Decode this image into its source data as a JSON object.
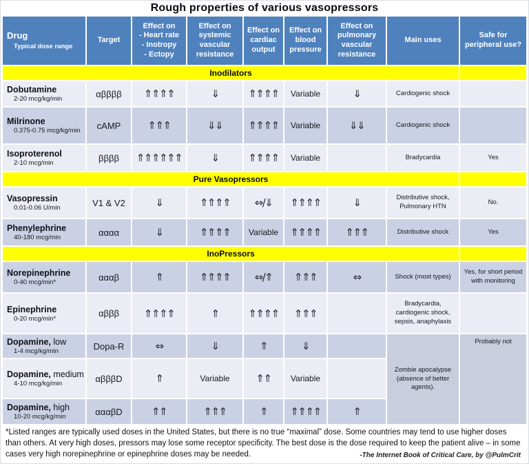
{
  "colors": {
    "header_blue": "#4f81bd",
    "section_yellow": "#ffff00",
    "row_light": "#ebedf5",
    "row_dark": "#cbd1e4",
    "merged_cell": "#c8cede",
    "header_text": "#ffffff"
  },
  "chart_data": {
    "type": "table",
    "title": "Rough properties of various vasopressors",
    "header": {
      "drug": "Drug",
      "drug_sub": "Typical dose range",
      "target": "Target",
      "hr1": "Effect on",
      "hr2": "- Heart rate",
      "hr3": "- Inotropy",
      "hr4": "- Ectopy",
      "svr1": "Effect on",
      "svr2": "systemic",
      "svr3": "vascular",
      "svr4": "resistance",
      "co1": "Effect on",
      "co2": "cardiac",
      "co3": "output",
      "bp1": "Effect on",
      "bp2": "blood",
      "bp3": "pressure",
      "pvr1": "Effect on",
      "pvr2": "pulmonary",
      "pvr3": "vascular",
      "pvr4": "resistance",
      "uses": "Main uses",
      "safe1": "Safe for",
      "safe2": "peripheral use?"
    },
    "section_labels": {
      "inodilators": "Inodilators",
      "pure": "Pure Vasopressors",
      "inopressors": "InoPressors"
    },
    "rows": [
      {
        "name": "Dobutamine",
        "suffix": "",
        "dose": "2-20 mcg/kg/min",
        "target": "αββββ",
        "hr": "⇑⇑⇑⇑",
        "svr": "⇓",
        "co": "⇑⇑⇑⇑",
        "bp": "Variable",
        "pvr": "⇓",
        "uses": "Cardiogenic shock",
        "safe": ""
      },
      {
        "name": "Milrinone",
        "suffix": "",
        "dose": "0.375-0.75 mcg/kg/min",
        "target": "cAMP",
        "hr": "⇑⇑⇑",
        "svr": "⇓⇓",
        "co": "⇑⇑⇑⇑",
        "bp": "Variable",
        "pvr": "⇓⇓",
        "uses": "Cardiogenic shock",
        "safe": ""
      },
      {
        "name": "Isoproterenol",
        "suffix": "",
        "dose": "2-10 mcg/min",
        "target": "ββββ",
        "hr": "⇑⇑⇑⇑⇑⇑",
        "svr": "⇓",
        "co": "⇑⇑⇑⇑",
        "bp": "Variable",
        "pvr": "",
        "uses": "Bradycardia",
        "safe": "Yes"
      },
      {
        "name": "Vasopressin",
        "suffix": "",
        "dose": "0.01-0.06 U/min",
        "target": "V1 & V2",
        "hr": "⇓",
        "svr": "⇑⇑⇑⇑",
        "co": "⇔/⇓",
        "bp": "⇑⇑⇑⇑",
        "pvr": "⇓",
        "uses": "Distributive shock, Pulmonary HTN",
        "safe": "No."
      },
      {
        "name": "Phenylephrine",
        "suffix": "",
        "dose": "40-180 mcg/min",
        "target": "αααα",
        "hr": "⇓",
        "svr": "⇑⇑⇑⇑",
        "co": "Variable",
        "bp": "⇑⇑⇑⇑",
        "pvr": "⇑⇑⇑",
        "uses": "Distributive shock",
        "safe": "Yes"
      },
      {
        "name": "Norepinephrine",
        "suffix": "",
        "dose": "0-40 mcg/min*",
        "target": "αααβ",
        "hr": "⇑",
        "svr": "⇑⇑⇑⇑",
        "co": "⇔/⇑",
        "bp": "⇑⇑⇑",
        "pvr": "⇔",
        "uses": "Shock (most types)",
        "safe": "Yes, for short period with monitoring"
      },
      {
        "name": "Epinephrine",
        "suffix": "",
        "dose": "0-20 mcg/min*",
        "target": "αβββ",
        "hr": "⇑⇑⇑⇑",
        "svr": "⇑",
        "co": "⇑⇑⇑⇑",
        "bp": "⇑⇑⇑",
        "pvr": "",
        "uses": "Bradycardia, cardiogenic shock, sepsis, anaphylaxis",
        "safe": ""
      },
      {
        "name": "Dopamine,",
        "suffix": " low",
        "dose": "1-4 mcg/kg/min",
        "target": "Dopa-R",
        "hr": "⇔",
        "svr": "⇓",
        "co": "⇑",
        "bp": "⇓",
        "pvr": "",
        "uses": "",
        "safe": ""
      },
      {
        "name": "Dopamine,",
        "suffix": " medium",
        "dose": "4-10 mcg/kg/min",
        "target": "αβββD",
        "hr": "⇑",
        "svr": "Variable",
        "co": "⇑⇑",
        "bp": "Variable",
        "pvr": "",
        "uses": "",
        "safe": ""
      },
      {
        "name": "Dopamine,",
        "suffix": " high",
        "dose": "10-20 mcg/kg/min",
        "target": "αααβD",
        "hr": "⇑⇑",
        "svr": "⇑⇑⇑",
        "co": "⇑",
        "bp": "⇑⇑⇑⇑",
        "pvr": "⇑",
        "uses": "",
        "safe": ""
      }
    ],
    "dopamine_merged_uses": "Zombie apocalypse (absence of better agents).",
    "dopamine_merged_safe": "Probably not",
    "footnote": "*Listed ranges are typically used doses in the United States, but there is no true “maximal” dose.  Some countries may tend to use higher doses than others.  At very high doses, pressors may lose some receptor specificity.   The best dose is the dose required to keep the patient alive – in some cases very high norepinephrine or epinephrine doses may be needed.",
    "credit": "-The Internet Book of Critical Care, by @PulmCrit"
  }
}
